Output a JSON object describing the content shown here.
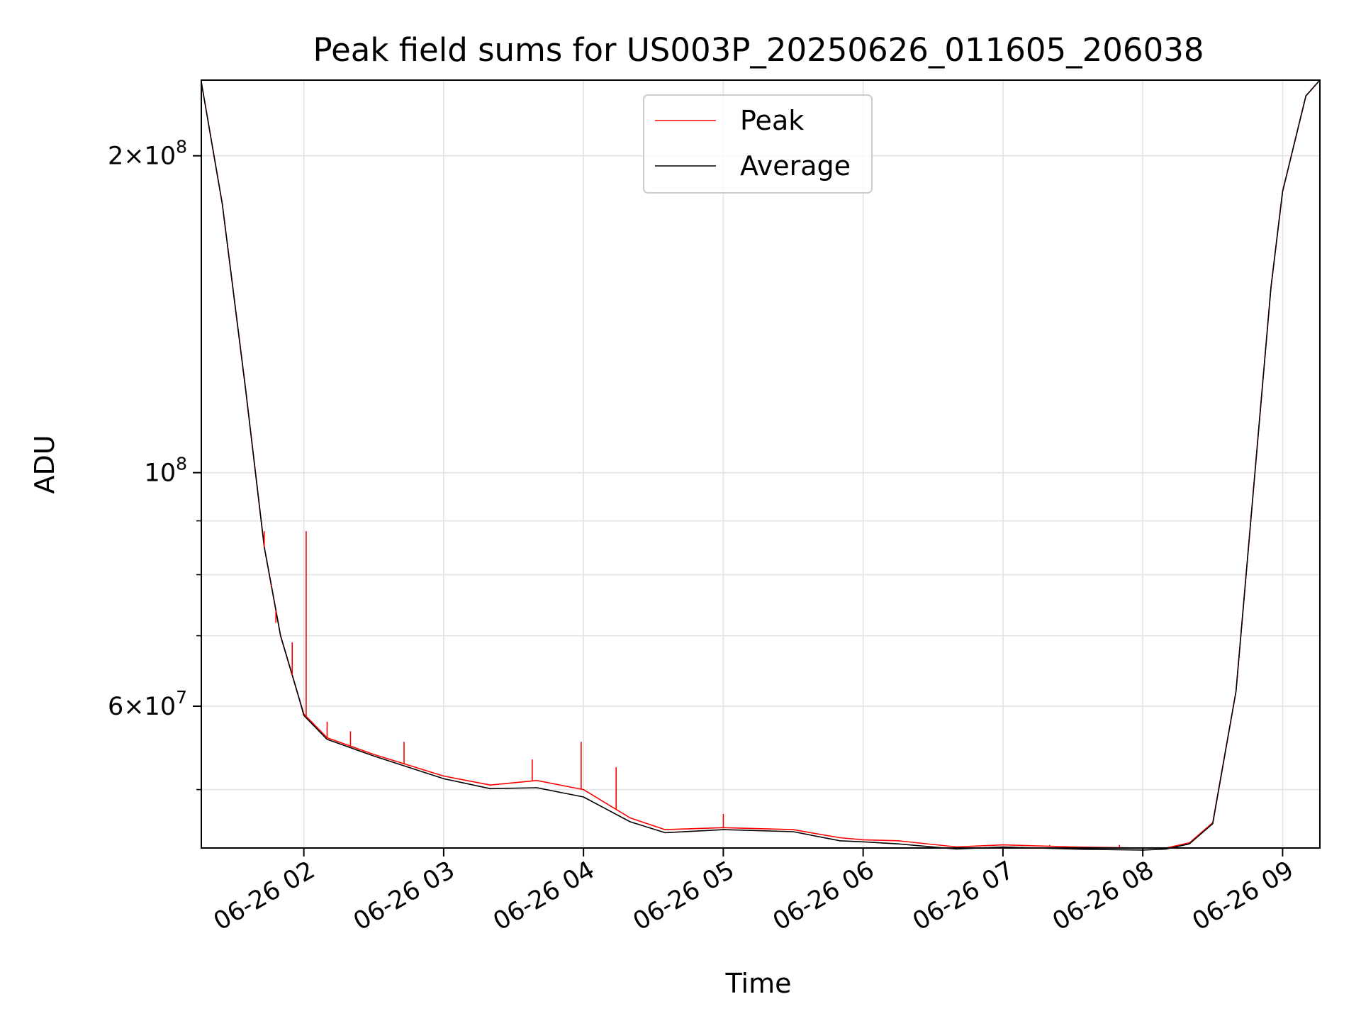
{
  "chart_data": {
    "type": "line",
    "title": "Peak field sums for US003P_20250626_011605_206038",
    "xlabel": "Time",
    "ylabel": "ADU",
    "yscale": "log",
    "grid": true,
    "legend_position": "top-center",
    "xlim": [
      "2025-06-26 01:16",
      "2025-06-26 09:16"
    ],
    "ylim": [
      44000000,
      236000000
    ],
    "x_ticks": [
      "06-26 02",
      "06-26 03",
      "06-26 04",
      "06-26 05",
      "06-26 06",
      "06-26 07",
      "06-26 08",
      "06-26 09"
    ],
    "x_tick_times": [
      "2025-06-26 02:00",
      "2025-06-26 03:00",
      "2025-06-26 04:00",
      "2025-06-26 05:00",
      "2025-06-26 06:00",
      "2025-06-26 07:00",
      "2025-06-26 08:00",
      "2025-06-26 09:00"
    ],
    "y_ticks": [
      {
        "value": 200000000,
        "mantissa": "2",
        "exponent": "8"
      },
      {
        "value": 100000000,
        "mantissa": "",
        "exponent": "8"
      },
      {
        "value": 60000000,
        "mantissa": "6",
        "exponent": "7"
      }
    ],
    "y_minor_ticks": [
      50000000,
      70000000,
      80000000,
      90000000
    ],
    "series": [
      {
        "name": "Peak",
        "color": "#ff0000",
        "x": [
          "2025-06-26 01:16",
          "2025-06-26 01:25",
          "2025-06-26 01:35",
          "2025-06-26 01:43",
          "2025-06-26 01:50",
          "2025-06-26 01:58",
          "2025-06-26 02:00",
          "2025-06-26 02:10",
          "2025-06-26 02:30",
          "2025-06-26 03:00",
          "2025-06-26 03:20",
          "2025-06-26 03:40",
          "2025-06-26 04:00",
          "2025-06-26 04:20",
          "2025-06-26 04:35",
          "2025-06-26 05:00",
          "2025-06-26 05:30",
          "2025-06-26 05:50",
          "2025-06-26 06:00",
          "2025-06-26 06:15",
          "2025-06-26 06:40",
          "2025-06-26 07:00",
          "2025-06-26 07:30",
          "2025-06-26 08:00",
          "2025-06-26 08:10",
          "2025-06-26 08:20",
          "2025-06-26 08:30",
          "2025-06-26 08:40",
          "2025-06-26 08:55",
          "2025-06-26 09:00",
          "2025-06-26 09:10",
          "2025-06-26 09:16"
        ],
        "y": [
          235000000,
          180000000,
          120000000,
          85000000,
          70000000,
          61000000,
          59000000,
          56000000,
          54000000,
          51500000,
          50500000,
          51000000,
          50000000,
          47000000,
          45800000,
          46000000,
          45800000,
          45000000,
          44800000,
          44700000,
          44100000,
          44300000,
          44100000,
          44000000,
          44000000,
          44500000,
          46500000,
          62000000,
          150000000,
          185000000,
          228000000,
          236000000
        ]
      },
      {
        "name": "Average",
        "color": "#000000",
        "x": [
          "2025-06-26 01:16",
          "2025-06-26 01:25",
          "2025-06-26 01:35",
          "2025-06-26 01:43",
          "2025-06-26 01:50",
          "2025-06-26 01:58",
          "2025-06-26 02:00",
          "2025-06-26 02:10",
          "2025-06-26 02:30",
          "2025-06-26 03:00",
          "2025-06-26 03:20",
          "2025-06-26 03:40",
          "2025-06-26 04:00",
          "2025-06-26 04:20",
          "2025-06-26 04:35",
          "2025-06-26 05:00",
          "2025-06-26 05:30",
          "2025-06-26 05:50",
          "2025-06-26 06:00",
          "2025-06-26 06:15",
          "2025-06-26 06:40",
          "2025-06-26 07:00",
          "2025-06-26 07:30",
          "2025-06-26 08:00",
          "2025-06-26 08:10",
          "2025-06-26 08:20",
          "2025-06-26 08:30",
          "2025-06-26 08:40",
          "2025-06-26 08:55",
          "2025-06-26 09:00",
          "2025-06-26 09:10",
          "2025-06-26 09:16"
        ],
        "y": [
          235000000,
          180000000,
          120000000,
          85000000,
          70000000,
          61000000,
          58800000,
          55800000,
          53800000,
          51200000,
          50100000,
          50200000,
          49200000,
          46600000,
          45500000,
          45800000,
          45600000,
          44700000,
          44600000,
          44400000,
          43900000,
          44100000,
          43900000,
          43800000,
          43900000,
          44400000,
          46400000,
          62000000,
          150000000,
          185000000,
          228000000,
          236000000
        ]
      }
    ],
    "spikes": [
      {
        "series": "Peak",
        "x": "2025-06-26 01:43",
        "y": 88000000
      },
      {
        "series": "Peak",
        "x": "2025-06-26 01:46",
        "y": 78000000
      },
      {
        "series": "Peak",
        "x": "2025-06-26 01:48",
        "y": 72000000
      },
      {
        "series": "Peak",
        "x": "2025-06-26 01:55",
        "y": 69000000
      },
      {
        "series": "Peak",
        "x": "2025-06-26 02:01",
        "y": 88000000
      },
      {
        "series": "Peak",
        "x": "2025-06-26 02:10",
        "y": 58000000
      },
      {
        "series": "Peak",
        "x": "2025-06-26 02:20",
        "y": 56800000
      },
      {
        "series": "Peak",
        "x": "2025-06-26 02:43",
        "y": 55500000
      },
      {
        "series": "Peak",
        "x": "2025-06-26 03:38",
        "y": 53400000
      },
      {
        "series": "Peak",
        "x": "2025-06-26 03:59",
        "y": 55500000
      },
      {
        "series": "Peak",
        "x": "2025-06-26 04:14",
        "y": 52500000
      },
      {
        "series": "Peak",
        "x": "2025-06-26 05:00",
        "y": 47400000
      },
      {
        "series": "Peak",
        "x": "2025-06-26 06:45",
        "y": 44100000
      },
      {
        "series": "Peak",
        "x": "2025-06-26 07:20",
        "y": 44300000
      },
      {
        "series": "Peak",
        "x": "2025-06-26 07:50",
        "y": 44300000
      }
    ]
  }
}
